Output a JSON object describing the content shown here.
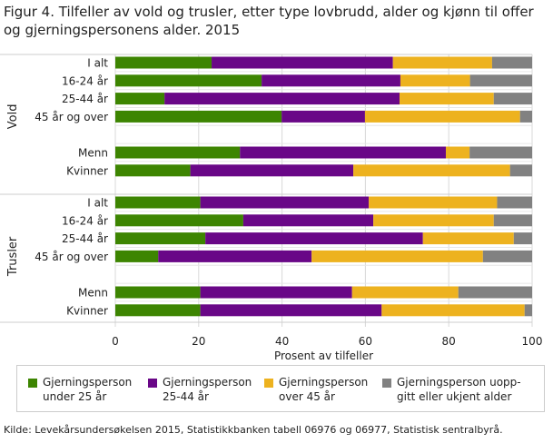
{
  "title": "Figur 4. Tilfeller av vold og trusler, etter type lovbrudd, alder og kjønn til offer og gjerningspersonens alder. 2015",
  "source": "Kilde: Levekårsundersøkelsen 2015, Statistikkbanken tabell 06976 og 06977, Statistisk sentralbyrå.",
  "chart_data": {
    "type": "bar",
    "orientation": "horizontal",
    "stacked": true,
    "xlabel": "Prosent av tilfeller",
    "xlim": [
      0,
      100
    ],
    "xticks": [
      "0",
      "20",
      "40",
      "60",
      "80",
      "100"
    ],
    "grid": true,
    "legend_position": "bottom",
    "groups": [
      {
        "name": "Vold",
        "categories": [
          "I alt",
          "16-24 år",
          "25-44 år",
          "45 år og over",
          "",
          "Menn",
          "Kvinner"
        ]
      },
      {
        "name": "Trusler",
        "categories": [
          "I alt",
          "16-24 år",
          "25-44 år",
          "45 år og over",
          "",
          "Menn",
          "Kvinner"
        ]
      }
    ],
    "series": [
      {
        "name": "Gjerningsperson under 25 år",
        "color": "#3d8501",
        "values": [
          [
            23.1,
            35.1,
            11.8,
            39.9,
            null,
            29.9,
            18.0
          ],
          [
            20.4,
            30.7,
            21.6,
            10.3,
            null,
            20.4,
            20.4
          ]
        ]
      },
      {
        "name": "Gjerningsperson 25-44 år",
        "color": "#690787",
        "values": [
          [
            43.5,
            33.3,
            56.4,
            20.0,
            null,
            49.4,
            39.1
          ],
          [
            40.4,
            31.2,
            52.2,
            36.8,
            null,
            36.4,
            43.5
          ]
        ]
      },
      {
        "name": "Gjerningsperson over 45 år",
        "color": "#edb21f",
        "values": [
          [
            23.8,
            16.7,
            22.6,
            37.2,
            null,
            5.7,
            37.6
          ],
          [
            30.8,
            28.9,
            21.8,
            41.1,
            null,
            25.5,
            34.3
          ]
        ]
      },
      {
        "name": "Gjerningsperson uoppgitt eller ukjent alder",
        "color": "#818181",
        "values": [
          [
            9.6,
            14.9,
            9.2,
            2.9,
            null,
            15.0,
            5.3
          ],
          [
            8.4,
            9.2,
            4.4,
            11.8,
            null,
            17.7,
            1.8
          ]
        ]
      }
    ]
  },
  "legend": [
    {
      "line1": "Gjerningsperson",
      "line2": "under 25 år"
    },
    {
      "line1": "Gjerningsperson",
      "line2": "25-44 år"
    },
    {
      "line1": "Gjerningsperson",
      "line2": "over 45 år"
    },
    {
      "line1": "Gjerningsperson uopp-",
      "line2": "gitt eller ukjent alder"
    }
  ]
}
